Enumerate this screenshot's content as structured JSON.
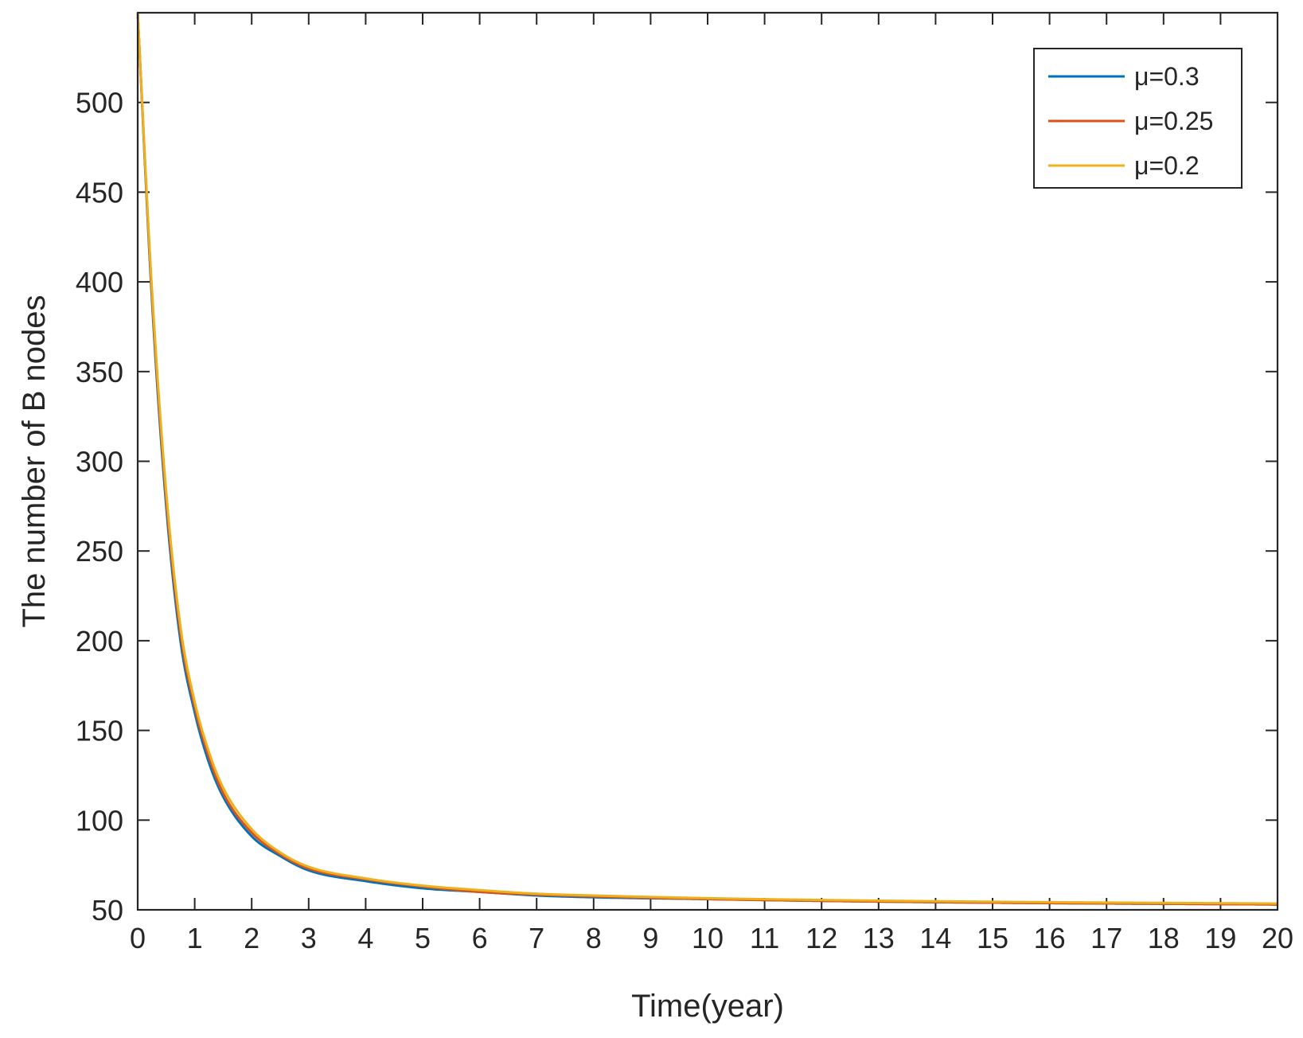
{
  "chart_data": {
    "type": "line",
    "xlabel": "Time(year)",
    "ylabel": "The number of B nodes",
    "xlim": [
      0,
      20
    ],
    "ylim": [
      50,
      550
    ],
    "xticks": [
      0,
      1,
      2,
      3,
      4,
      5,
      6,
      7,
      8,
      9,
      10,
      11,
      12,
      13,
      14,
      15,
      16,
      17,
      18,
      19,
      20
    ],
    "yticks": [
      50,
      100,
      150,
      200,
      250,
      300,
      350,
      400,
      450,
      500
    ],
    "grid": false,
    "legend_position": "top-right",
    "x": [
      0,
      0.25,
      0.5,
      0.75,
      1,
      1.25,
      1.5,
      2,
      2.5,
      3,
      4,
      5,
      6,
      7,
      8,
      10,
      12,
      15,
      20
    ],
    "series": [
      {
        "name": "μ=0.3",
        "color": "#0072BD",
        "values": [
          550,
          390,
          275,
          200,
          160,
          132,
          113,
          91,
          80,
          72,
          66,
          62,
          60,
          58,
          57,
          56,
          55,
          54,
          53
        ]
      },
      {
        "name": "μ=0.25",
        "color": "#D95319",
        "values": [
          550,
          393,
          279,
          204,
          163,
          135,
          115,
          93,
          81,
          73,
          67,
          63,
          60,
          58.5,
          57.5,
          56,
          55,
          54,
          53
        ]
      },
      {
        "name": "μ=0.2",
        "color": "#EDB120",
        "values": [
          550,
          396,
          283,
          208,
          166,
          138,
          118,
          95,
          82,
          74,
          67.5,
          63.5,
          61,
          59,
          58,
          56.5,
          55.5,
          54.5,
          53.5
        ]
      }
    ]
  }
}
